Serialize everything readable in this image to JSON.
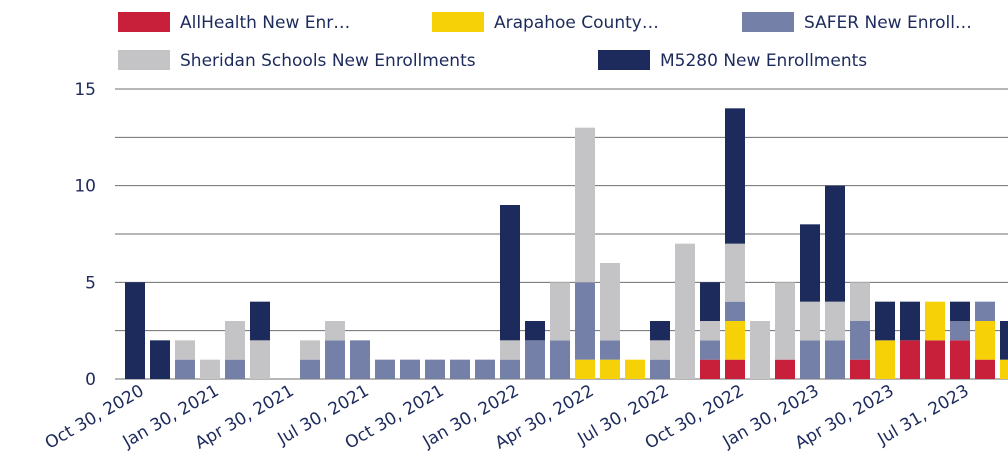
{
  "chart_data": {
    "type": "stacked_bar",
    "categories": [
      "Oct 30, 2020",
      null,
      null,
      "Jan 30, 2021",
      null,
      null,
      "Apr 30, 2021",
      null,
      null,
      "Jul 30, 2021",
      null,
      null,
      "Oct 30, 2021",
      null,
      null,
      "Jan 30, 2022",
      null,
      null,
      "Apr 30, 2022",
      null,
      null,
      "Jul 30, 2022",
      null,
      null,
      "Oct 30, 2022",
      null,
      null,
      "Jan 30, 2023",
      null,
      null,
      "Apr 30, 2023",
      null,
      null,
      "Jul 31, 2023",
      null,
      null
    ],
    "series": [
      {
        "name": "AllHealth New Enr…",
        "color": "#c8203a",
        "values": [
          0,
          0,
          0,
          0,
          0,
          0,
          0,
          0,
          0,
          0,
          0,
          0,
          0,
          0,
          0,
          0,
          0,
          0,
          0,
          0,
          0,
          0,
          0,
          1,
          1,
          0,
          1,
          0,
          0,
          1,
          0,
          2,
          2,
          2,
          1,
          0
        ]
      },
      {
        "name": "Arapahoe County…",
        "color": "#f7d108",
        "values": [
          0,
          0,
          0,
          0,
          0,
          0,
          0,
          0,
          0,
          0,
          0,
          0,
          0,
          0,
          0,
          0,
          0,
          0,
          1,
          1,
          1,
          0,
          0,
          0,
          2,
          0,
          0,
          0,
          0,
          0,
          2,
          0,
          2,
          0,
          2,
          1
        ]
      },
      {
        "name": "SAFER New Enroll…",
        "color": "#7580a8",
        "values": [
          0,
          0,
          1,
          0,
          1,
          0,
          0,
          1,
          2,
          2,
          1,
          1,
          1,
          1,
          1,
          1,
          2,
          2,
          4,
          1,
          0,
          1,
          0,
          1,
          1,
          0,
          0,
          2,
          2,
          2,
          0,
          0,
          0,
          1,
          1,
          0
        ]
      },
      {
        "name": "Sheridan Schools New Enrollments",
        "color": "#c4c4c6",
        "values": [
          0,
          0,
          1,
          1,
          2,
          2,
          0,
          1,
          1,
          0,
          0,
          0,
          0,
          0,
          0,
          1,
          0,
          3,
          8,
          4,
          0,
          1,
          7,
          1,
          3,
          3,
          4,
          2,
          2,
          2,
          0,
          0,
          0,
          0,
          0,
          0
        ]
      },
      {
        "name": "M5280 New Enrollments",
        "color": "#1d2a5c",
        "values": [
          5,
          2,
          0,
          0,
          0,
          2,
          0,
          0,
          0,
          0,
          0,
          0,
          0,
          0,
          0,
          7,
          1,
          0,
          0,
          0,
          0,
          1,
          0,
          2,
          7,
          0,
          0,
          4,
          6,
          0,
          2,
          2,
          0,
          1,
          0,
          2
        ]
      }
    ],
    "ylim": [
      0,
      15
    ],
    "yticks": [
      0,
      5,
      10,
      15
    ],
    "minor_yticks": [
      2.5,
      7.5,
      12.5
    ],
    "grid": true,
    "legend": "top"
  }
}
